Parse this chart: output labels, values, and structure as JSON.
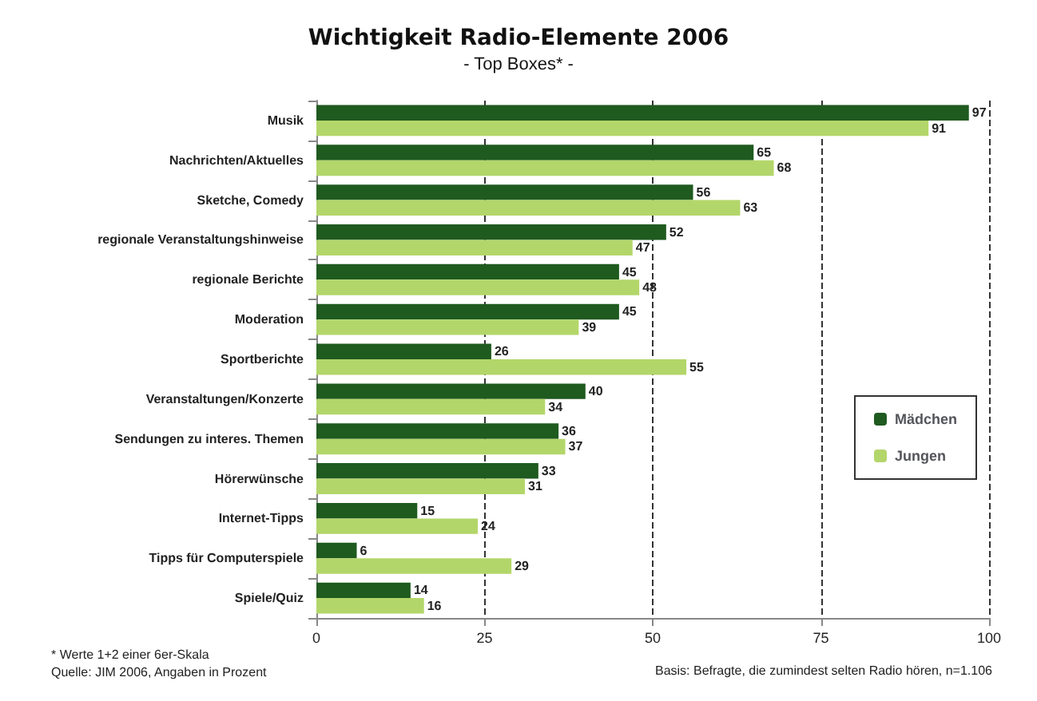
{
  "chart_data": {
    "type": "bar",
    "orientation": "horizontal",
    "title": "Wichtigkeit Radio-Elemente 2006",
    "subtitle": "- Top Boxes* -",
    "categories": [
      "Musik",
      "Nachrichten/Aktuelles",
      "Sketche, Comedy",
      "regionale Veranstaltungshinweise",
      "regionale Berichte",
      "Moderation",
      "Sportberichte",
      "Veranstaltungen/Konzerte",
      "Sendungen zu interes. Themen",
      "Hörerwünsche",
      "Internet-Tipps",
      "Tipps für Computerspiele",
      "Spiele/Quiz"
    ],
    "series": [
      {
        "name": "Mädchen",
        "color": "#1f5a1f",
        "values": [
          97,
          65,
          56,
          52,
          45,
          45,
          26,
          40,
          36,
          33,
          15,
          6,
          14
        ]
      },
      {
        "name": "Jungen",
        "color": "#b3d66a",
        "values": [
          91,
          68,
          63,
          47,
          48,
          39,
          55,
          34,
          37,
          31,
          24,
          29,
          16
        ]
      }
    ],
    "xlim": [
      0,
      100
    ],
    "xticks": [
      0,
      25,
      50,
      75,
      100
    ],
    "grid": "x",
    "legend": "right",
    "data_labels": true,
    "annotations": [
      "* Werte 1+2 einer 6er-Skala",
      "Quelle: JIM 2006, Angaben in Prozent",
      "Basis: Befragte, die zumindest selten Radio hören, n=1.106"
    ]
  }
}
